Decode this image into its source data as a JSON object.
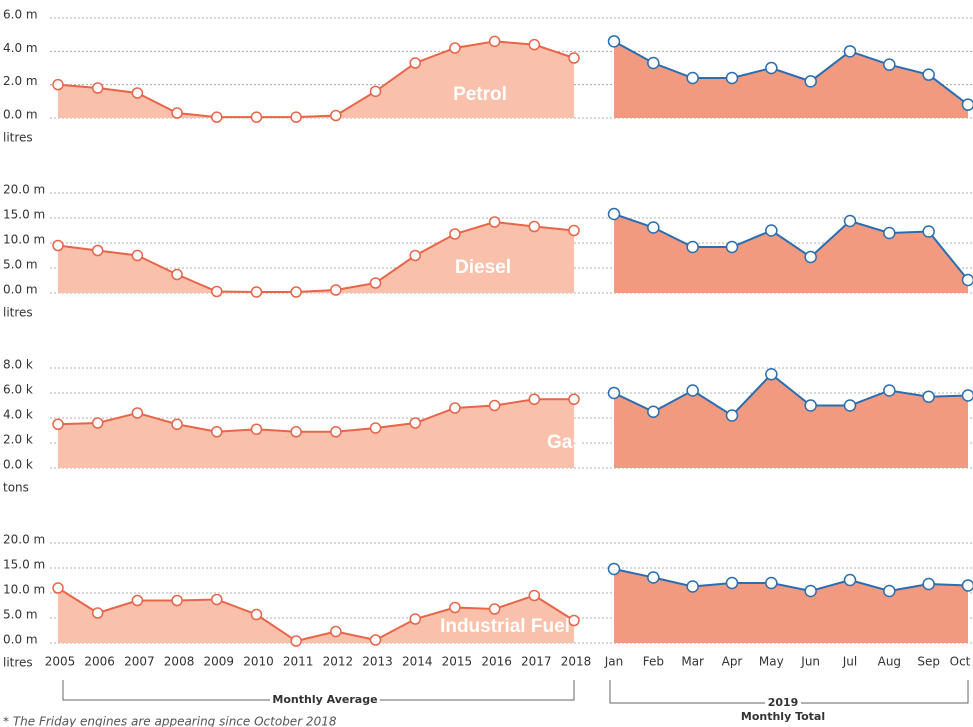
{
  "chart_data": {
    "type": "area-panels",
    "average": {
      "categories": [
        "2005",
        "2006",
        "2007",
        "2008",
        "2009",
        "2010",
        "2011",
        "2012",
        "2013",
        "2014",
        "2015",
        "2016",
        "2017",
        "2018"
      ],
      "label": "Monthly Average",
      "fill": "#f9c1ab",
      "line": "#e8654a"
    },
    "total": {
      "categories": [
        "Jan",
        "Feb",
        "Mar",
        "Apr",
        "May",
        "Jun",
        "Jul",
        "Aug",
        "Sep",
        "Oct"
      ],
      "year_label": "2019",
      "label": "Monthly Total",
      "fill": "#f29a7f",
      "line": "#2a6db0"
    },
    "footnote": "* The Friday engines are appearing since October 2018",
    "panels": [
      {
        "title": "Petrol",
        "unit": "litres",
        "ylim": [
          0,
          6
        ],
        "yticks": [
          {
            "value": 0,
            "label": "0.0 m"
          },
          {
            "value": 2,
            "label": "2.0 m"
          },
          {
            "value": 4,
            "label": "4.0 m"
          },
          {
            "value": 6,
            "label": "6.0 m"
          }
        ],
        "average_values": [
          2.0,
          1.8,
          1.5,
          0.3,
          0.05,
          0.05,
          0.05,
          0.15,
          1.6,
          3.3,
          4.2,
          4.6,
          4.4,
          3.6
        ],
        "total_values": [
          4.6,
          3.3,
          2.4,
          2.4,
          3.0,
          2.2,
          4.0,
          3.2,
          2.6,
          0.8
        ]
      },
      {
        "title": "Diesel",
        "unit": "litres",
        "ylim": [
          0,
          20
        ],
        "yticks": [
          {
            "value": 0,
            "label": "0.0 m"
          },
          {
            "value": 5,
            "label": "5.0 m"
          },
          {
            "value": 10,
            "label": "10.0 m"
          },
          {
            "value": 15,
            "label": "15.0 m"
          },
          {
            "value": 20,
            "label": "20.0 m"
          }
        ],
        "average_values": [
          9.5,
          8.5,
          7.5,
          3.7,
          0.3,
          0.2,
          0.2,
          0.6,
          2.0,
          7.5,
          11.8,
          14.2,
          13.3,
          12.5
        ],
        "total_values": [
          15.8,
          13.1,
          9.2,
          9.2,
          12.5,
          7.2,
          14.4,
          12.0,
          12.3,
          2.6
        ]
      },
      {
        "title": "Gas",
        "unit": "tons",
        "ylim": [
          0,
          8
        ],
        "yticks": [
          {
            "value": 0,
            "label": "0.0 k"
          },
          {
            "value": 2,
            "label": "2.0 k"
          },
          {
            "value": 4,
            "label": "4.0 k"
          },
          {
            "value": 6,
            "label": "6.0 k"
          },
          {
            "value": 8,
            "label": "8.0 k"
          }
        ],
        "average_values": [
          3.5,
          3.6,
          4.4,
          3.5,
          2.9,
          3.1,
          2.9,
          2.9,
          3.2,
          3.6,
          4.8,
          5.0,
          5.5,
          5.5
        ],
        "total_values": [
          6.0,
          4.5,
          6.2,
          4.2,
          7.5,
          5.0,
          5.0,
          6.2,
          5.7,
          5.8
        ]
      },
      {
        "title": "Industrial Fuel",
        "unit": "litres",
        "ylim": [
          0,
          20
        ],
        "yticks": [
          {
            "value": 0,
            "label": "0.0 m"
          },
          {
            "value": 5,
            "label": "5.0 m"
          },
          {
            "value": 10,
            "label": "10.0 m"
          },
          {
            "value": 15,
            "label": "15.0 m"
          },
          {
            "value": 20,
            "label": "20.0 m"
          }
        ],
        "average_values": [
          11.0,
          6.0,
          8.5,
          8.5,
          8.7,
          5.7,
          0.4,
          2.3,
          0.6,
          4.8,
          7.1,
          6.8,
          9.5,
          4.5
        ],
        "total_values": [
          14.8,
          13.1,
          11.3,
          12.0,
          12.0,
          10.4,
          12.6,
          10.4,
          11.8,
          11.5
        ]
      }
    ]
  }
}
